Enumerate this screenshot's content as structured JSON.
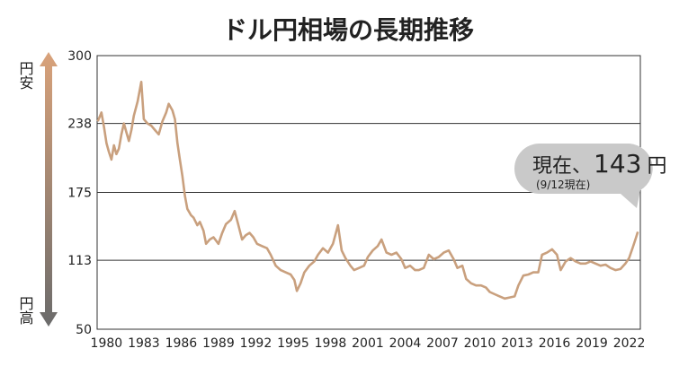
{
  "chart_data": {
    "type": "line",
    "title": "ドル円相場の長期推移",
    "y_direction_labels": {
      "top": "円安",
      "bottom": "円高"
    },
    "annotation": {
      "prefix": "現在、",
      "value": "143",
      "unit": "円",
      "note": "(9/12現在)"
    },
    "color": "#c9a07e",
    "grid": true,
    "xlim": [
      1979.25,
      2022.9
    ],
    "xticks": [
      1980,
      1983,
      1986,
      1989,
      1992,
      1995,
      1998,
      2001,
      2004,
      2007,
      2010,
      2013,
      2016,
      2019,
      2022
    ],
    "ylim": [
      50,
      300
    ],
    "yticks": [
      50,
      113,
      175,
      238,
      300
    ],
    "x": [
      1979.3,
      1979.6,
      1979.8,
      1980.0,
      1980.2,
      1980.4,
      1980.6,
      1980.8,
      1981.0,
      1981.2,
      1981.4,
      1981.6,
      1981.8,
      1982.0,
      1982.2,
      1982.5,
      1982.8,
      1983.0,
      1983.3,
      1983.6,
      1983.9,
      1984.2,
      1984.5,
      1984.8,
      1985.0,
      1985.3,
      1985.5,
      1985.7,
      1985.9,
      1986.1,
      1986.3,
      1986.5,
      1986.8,
      1987.0,
      1987.3,
      1987.5,
      1987.8,
      1988.0,
      1988.3,
      1988.6,
      1989.0,
      1989.3,
      1989.6,
      1990.0,
      1990.3,
      1990.6,
      1990.9,
      1991.2,
      1991.5,
      1991.8,
      1992.1,
      1992.5,
      1992.9,
      1993.2,
      1993.6,
      1994.0,
      1994.4,
      1994.8,
      1995.1,
      1995.3,
      1995.6,
      1995.9,
      1996.3,
      1996.7,
      1997.0,
      1997.4,
      1997.8,
      1998.2,
      1998.6,
      1998.9,
      1999.2,
      1999.6,
      1999.9,
      2000.3,
      2000.7,
      2001.0,
      2001.4,
      2001.8,
      2002.1,
      2002.5,
      2002.9,
      2003.3,
      2003.7,
      2004.0,
      2004.4,
      2004.8,
      2005.1,
      2005.5,
      2005.9,
      2006.3,
      2006.7,
      2007.1,
      2007.5,
      2007.9,
      2008.2,
      2008.6,
      2008.9,
      2009.3,
      2009.7,
      2010.1,
      2010.5,
      2010.8,
      2011.2,
      2011.6,
      2012.0,
      2012.4,
      2012.8,
      2013.1,
      2013.5,
      2013.9,
      2014.3,
      2014.7,
      2015.0,
      2015.4,
      2015.8,
      2016.2,
      2016.5,
      2016.9,
      2017.3,
      2017.7,
      2018.1,
      2018.5,
      2018.9,
      2019.3,
      2019.7,
      2020.1,
      2020.5,
      2020.9,
      2021.3,
      2021.7,
      2022.0,
      2022.3,
      2022.5,
      2022.7
    ],
    "values": [
      240,
      248,
      235,
      220,
      212,
      205,
      218,
      210,
      215,
      228,
      238,
      230,
      222,
      232,
      245,
      258,
      276,
      242,
      238,
      236,
      232,
      228,
      240,
      248,
      256,
      250,
      242,
      220,
      205,
      190,
      172,
      160,
      154,
      152,
      145,
      148,
      140,
      128,
      132,
      134,
      128,
      138,
      146,
      150,
      158,
      145,
      132,
      136,
      138,
      134,
      128,
      126,
      124,
      118,
      108,
      104,
      102,
      100,
      95,
      85,
      92,
      102,
      108,
      112,
      118,
      124,
      120,
      128,
      145,
      122,
      115,
      108,
      104,
      106,
      108,
      116,
      122,
      126,
      132,
      120,
      118,
      120,
      114,
      106,
      108,
      104,
      104,
      106,
      118,
      114,
      116,
      120,
      122,
      114,
      106,
      108,
      96,
      92,
      90,
      90,
      88,
      84,
      82,
      80,
      78,
      79,
      80,
      90,
      99,
      100,
      102,
      102,
      118,
      120,
      123,
      118,
      104,
      112,
      115,
      112,
      110,
      110,
      112,
      110,
      108,
      109,
      106,
      104,
      105,
      110,
      115,
      125,
      132,
      139
    ]
  }
}
